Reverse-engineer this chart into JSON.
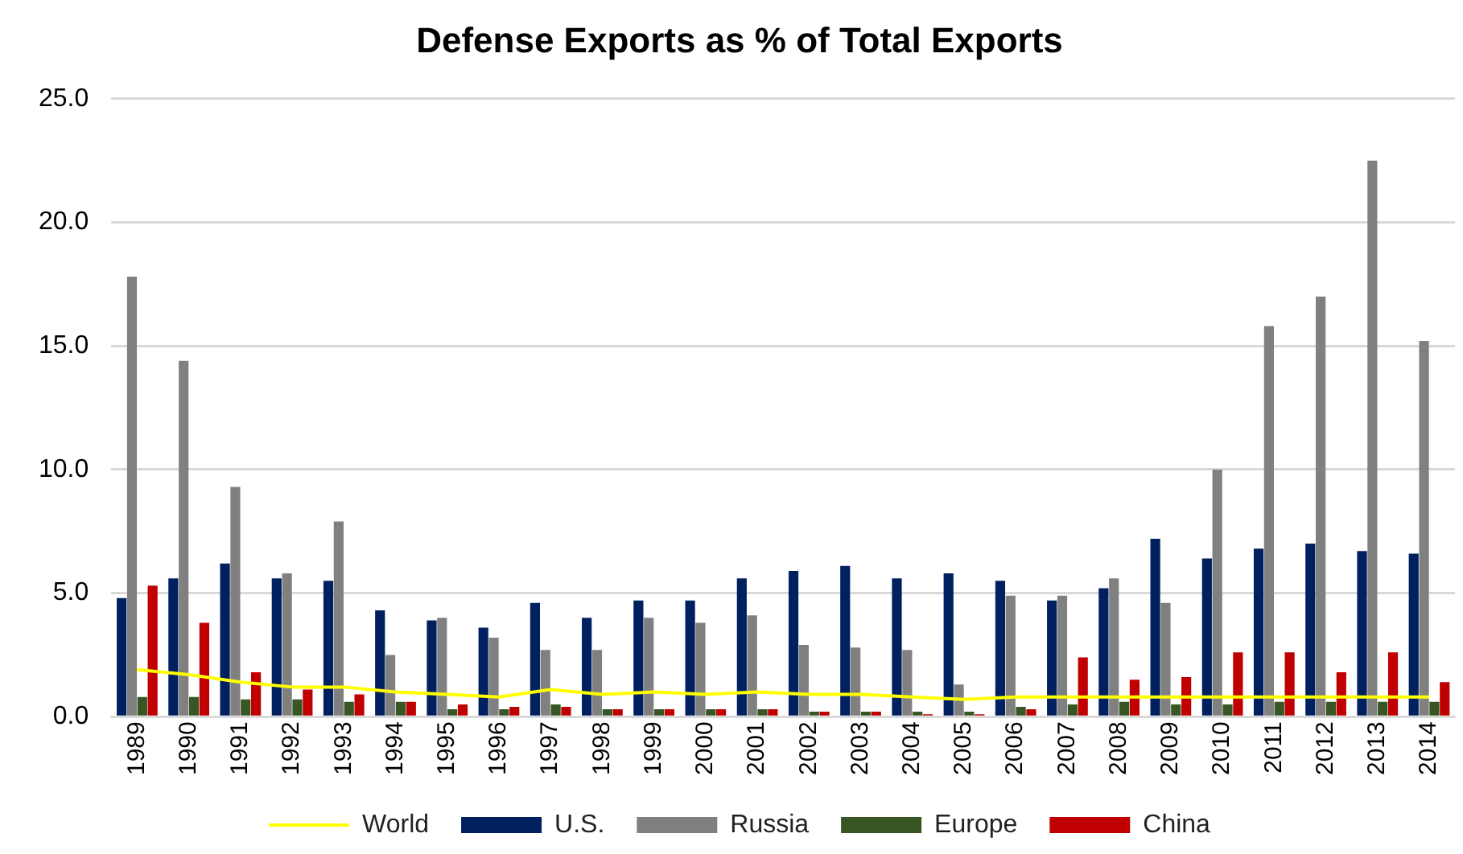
{
  "chart_data": {
    "type": "bar",
    "title": "Defense Exports as % of Total Exports",
    "categories": [
      "1989",
      "1990",
      "1991",
      "1992",
      "1993",
      "1994",
      "1995",
      "1996",
      "1997",
      "1998",
      "1999",
      "2000",
      "2001",
      "2002",
      "2003",
      "2004",
      "2005",
      "2006",
      "2007",
      "2008",
      "2009",
      "2010",
      "2011",
      "2012",
      "2013",
      "2014"
    ],
    "series": [
      {
        "name": "U.S.",
        "color": "#002060",
        "values": [
          4.8,
          5.6,
          6.2,
          5.6,
          5.5,
          4.3,
          3.9,
          3.6,
          4.6,
          4.0,
          4.7,
          4.7,
          5.6,
          5.9,
          6.1,
          5.6,
          5.8,
          5.5,
          4.7,
          5.2,
          7.2,
          6.4,
          6.8,
          7.0,
          6.7,
          6.6
        ]
      },
      {
        "name": "Russia",
        "color": "#808080",
        "values": [
          17.8,
          14.4,
          9.3,
          5.8,
          7.9,
          2.5,
          4.0,
          3.2,
          2.7,
          2.7,
          4.0,
          3.8,
          4.1,
          2.9,
          2.8,
          2.7,
          1.3,
          4.9,
          4.9,
          5.6,
          4.6,
          10.0,
          15.8,
          17.0,
          22.5,
          15.2
        ]
      },
      {
        "name": "Europe",
        "color": "#375623",
        "values": [
          0.8,
          0.8,
          0.7,
          0.7,
          0.6,
          0.6,
          0.3,
          0.3,
          0.5,
          0.3,
          0.3,
          0.3,
          0.3,
          0.2,
          0.2,
          0.2,
          0.2,
          0.4,
          0.5,
          0.6,
          0.5,
          0.5,
          0.6,
          0.6,
          0.6,
          0.6
        ]
      },
      {
        "name": "China",
        "color": "#c00000",
        "values": [
          5.3,
          3.8,
          1.8,
          1.1,
          0.9,
          0.6,
          0.5,
          0.4,
          0.4,
          0.3,
          0.3,
          0.3,
          0.3,
          0.2,
          0.2,
          0.1,
          0.1,
          0.3,
          2.4,
          1.5,
          1.6,
          2.6,
          2.6,
          1.8,
          2.6,
          1.4
        ]
      },
      {
        "name": "World",
        "type": "line",
        "color": "#ffff00",
        "values": [
          1.9,
          1.7,
          1.4,
          1.2,
          1.2,
          1.0,
          0.9,
          0.8,
          1.1,
          0.9,
          1.0,
          0.9,
          1.0,
          0.9,
          0.9,
          0.8,
          0.7,
          0.8,
          0.8,
          0.8,
          0.8,
          0.8,
          0.8,
          0.8,
          0.8,
          0.8
        ]
      }
    ],
    "ylim": [
      0,
      25
    ],
    "yticks": [
      {
        "value": 0,
        "label": "0.0"
      },
      {
        "value": 5,
        "label": "5.0"
      },
      {
        "value": 10,
        "label": "10.0"
      },
      {
        "value": 15,
        "label": "15.0"
      },
      {
        "value": 20,
        "label": "20.0"
      },
      {
        "value": 25,
        "label": "25.0"
      }
    ],
    "grid": "y",
    "legend": "bottom",
    "marker": "none"
  }
}
